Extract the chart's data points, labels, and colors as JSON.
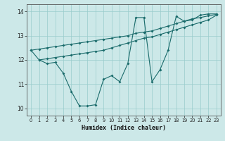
{
  "xlabel": "Humidex (Indice chaleur)",
  "xlim": [
    -0.5,
    23.5
  ],
  "ylim": [
    9.7,
    14.3
  ],
  "xticks": [
    0,
    1,
    2,
    3,
    4,
    5,
    6,
    7,
    8,
    9,
    10,
    11,
    12,
    13,
    14,
    15,
    16,
    17,
    18,
    19,
    20,
    21,
    22,
    23
  ],
  "yticks": [
    10,
    11,
    12,
    13,
    14
  ],
  "bg_color": "#cce8e8",
  "line_color": "#1a6b6b",
  "grid_color": "#99cccc",
  "line1_x": [
    0,
    1,
    2,
    3,
    4,
    5,
    6,
    7,
    8,
    9,
    10,
    11,
    12,
    13,
    14,
    15,
    16,
    17,
    18,
    19,
    20,
    21,
    22,
    23
  ],
  "line1_y": [
    12.4,
    12.0,
    11.85,
    11.9,
    11.45,
    10.7,
    10.1,
    10.1,
    10.15,
    11.2,
    11.35,
    11.1,
    11.85,
    13.75,
    13.75,
    11.1,
    11.6,
    12.4,
    13.8,
    13.6,
    13.65,
    13.85,
    13.9,
    13.9
  ],
  "line2_x": [
    0,
    1,
    2,
    3,
    4,
    5,
    6,
    7,
    8,
    9,
    10,
    11,
    12,
    13,
    14,
    15,
    16,
    17,
    18,
    19,
    20,
    21,
    22,
    23
  ],
  "line2_y": [
    12.4,
    12.45,
    12.5,
    12.55,
    12.6,
    12.65,
    12.7,
    12.75,
    12.8,
    12.85,
    12.9,
    12.95,
    13.0,
    13.1,
    13.15,
    13.2,
    13.3,
    13.4,
    13.5,
    13.6,
    13.7,
    13.75,
    13.82,
    13.88
  ],
  "line3_x": [
    1,
    2,
    3,
    4,
    5,
    6,
    7,
    8,
    9,
    10,
    11,
    12,
    13,
    14,
    15,
    16,
    17,
    18,
    19,
    20,
    21,
    22,
    23
  ],
  "line3_y": [
    12.0,
    12.05,
    12.1,
    12.15,
    12.2,
    12.25,
    12.3,
    12.35,
    12.4,
    12.5,
    12.6,
    12.7,
    12.8,
    12.9,
    12.95,
    13.05,
    13.15,
    13.25,
    13.35,
    13.45,
    13.55,
    13.65,
    13.85
  ]
}
